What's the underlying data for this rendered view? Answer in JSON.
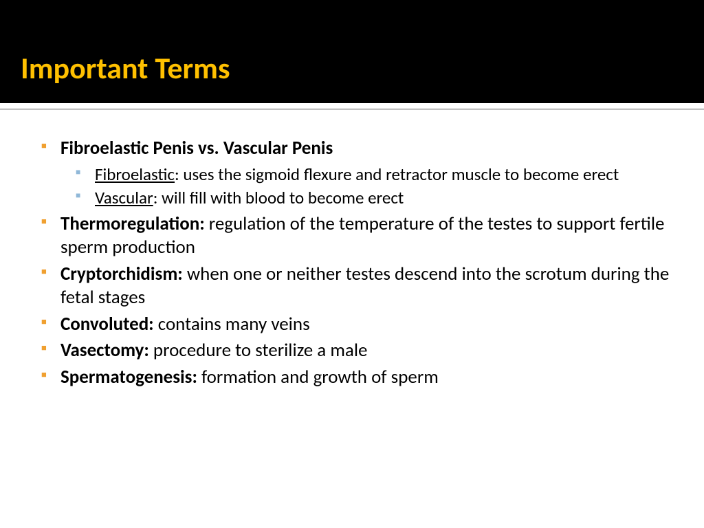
{
  "slide": {
    "title": "Important Terms",
    "colors": {
      "header_background": "#000000",
      "title_color": "#ffc000",
      "level1_bullet": "#f0a030",
      "level2_bullet": "#90b8d8",
      "body_text": "#000000",
      "body_background": "#ffffff",
      "divider": "#999999"
    },
    "typography": {
      "title_fontsize": 44,
      "level1_fontsize": 27,
      "level2_fontsize": 25,
      "font_family": "Calibri"
    },
    "items": [
      {
        "term": "Fibroelastic Penis vs. Vascular Penis",
        "definition": "",
        "sub": [
          {
            "term": "Fibroelastic",
            "definition": ": uses the sigmoid flexure and retractor muscle to become erect"
          },
          {
            "term": "Vascular",
            "definition": ": will fill with blood to become erect"
          }
        ]
      },
      {
        "term": "Thermoregulation:",
        "definition": " regulation of the temperature of the testes to support fertile sperm production"
      },
      {
        "term": "Cryptorchidism:",
        "definition": " when one or neither testes descend into the scrotum during the fetal stages"
      },
      {
        "term": "Convoluted:",
        "definition": " contains many veins"
      },
      {
        "term": "Vasectomy:",
        "definition": " procedure to sterilize a male"
      },
      {
        "term": "Spermatogenesis:",
        "definition": " formation and growth of sperm"
      }
    ]
  }
}
